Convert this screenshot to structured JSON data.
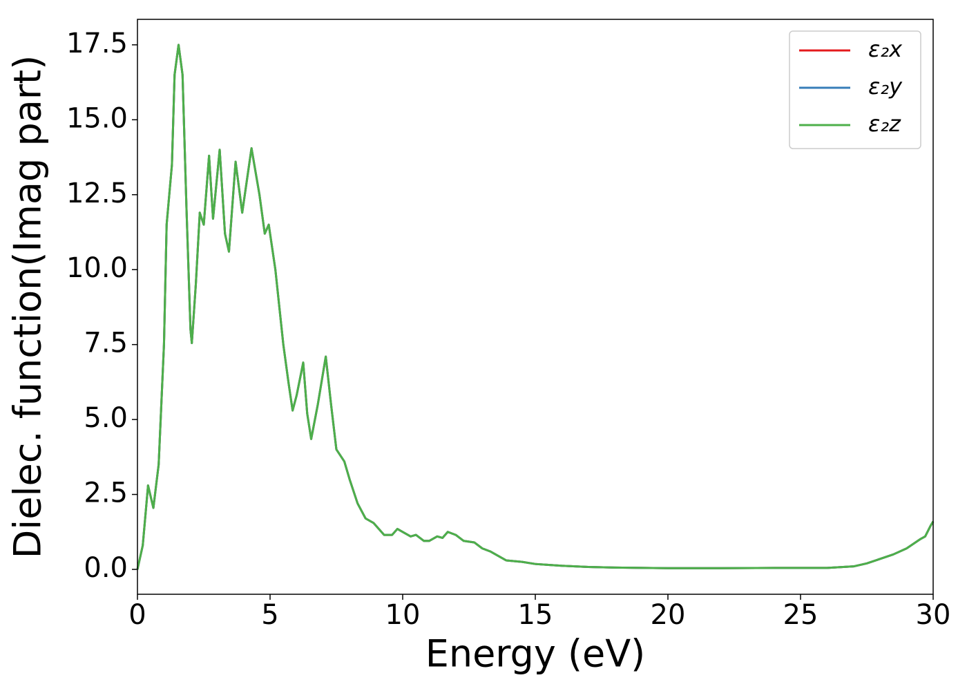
{
  "chart_data": {
    "type": "line",
    "xlabel": "Energy (eV)",
    "ylabel": "Dielec. function(Imag part)",
    "x": [
      0,
      0.2,
      0.4,
      0.6,
      0.8,
      1.0,
      1.1,
      1.2,
      1.3,
      1.4,
      1.55,
      1.7,
      1.85,
      2.0,
      2.05,
      2.2,
      2.35,
      2.5,
      2.7,
      2.85,
      3.1,
      3.3,
      3.45,
      3.7,
      3.95,
      4.3,
      4.6,
      4.8,
      4.95,
      5.2,
      5.5,
      5.7,
      5.85,
      6.0,
      6.25,
      6.4,
      6.55,
      6.8,
      7.1,
      7.3,
      7.5,
      7.8,
      8.0,
      8.3,
      8.6,
      8.9,
      9.3,
      9.6,
      9.8,
      10.0,
      10.3,
      10.5,
      10.8,
      11.0,
      11.3,
      11.5,
      11.7,
      12.0,
      12.3,
      12.7,
      13.0,
      13.3,
      13.6,
      13.9,
      14.5,
      15.0,
      15.5,
      16.0,
      17.0,
      18.0,
      20.0,
      22.0,
      24.0,
      26.0,
      27.0,
      27.5,
      28.0,
      28.5,
      29.0,
      29.5,
      29.7,
      29.9,
      30.0
    ],
    "series": [
      {
        "name": "ε₂x",
        "color": "#e41a1c",
        "values": [
          0.0,
          0.8,
          2.8,
          2.05,
          3.5,
          7.5,
          11.5,
          12.5,
          13.5,
          16.5,
          17.5,
          16.5,
          12.0,
          8.0,
          7.55,
          9.5,
          11.9,
          11.5,
          13.8,
          11.7,
          14.0,
          11.2,
          10.6,
          13.6,
          11.9,
          14.05,
          12.5,
          11.2,
          11.5,
          10.0,
          7.5,
          6.2,
          5.3,
          5.8,
          6.9,
          5.2,
          4.35,
          5.5,
          7.1,
          5.5,
          4.0,
          3.6,
          3.0,
          2.2,
          1.7,
          1.55,
          1.15,
          1.15,
          1.35,
          1.25,
          1.1,
          1.15,
          0.95,
          0.95,
          1.1,
          1.05,
          1.25,
          1.15,
          0.95,
          0.9,
          0.7,
          0.6,
          0.45,
          0.3,
          0.25,
          0.18,
          0.15,
          0.12,
          0.08,
          0.06,
          0.04,
          0.04,
          0.05,
          0.05,
          0.1,
          0.2,
          0.35,
          0.5,
          0.7,
          1.0,
          1.1,
          1.45,
          1.6
        ]
      },
      {
        "name": "ε₂y",
        "color": "#377eb8",
        "values": [
          0.0,
          0.8,
          2.8,
          2.05,
          3.5,
          7.5,
          11.5,
          12.5,
          13.5,
          16.5,
          17.5,
          16.5,
          12.0,
          8.0,
          7.55,
          9.5,
          11.9,
          11.5,
          13.8,
          11.7,
          14.0,
          11.2,
          10.6,
          13.6,
          11.9,
          14.05,
          12.5,
          11.2,
          11.5,
          10.0,
          7.5,
          6.2,
          5.3,
          5.8,
          6.9,
          5.2,
          4.35,
          5.5,
          7.1,
          5.5,
          4.0,
          3.6,
          3.0,
          2.2,
          1.7,
          1.55,
          1.15,
          1.15,
          1.35,
          1.25,
          1.1,
          1.15,
          0.95,
          0.95,
          1.1,
          1.05,
          1.25,
          1.15,
          0.95,
          0.9,
          0.7,
          0.6,
          0.45,
          0.3,
          0.25,
          0.18,
          0.15,
          0.12,
          0.08,
          0.06,
          0.04,
          0.04,
          0.05,
          0.05,
          0.1,
          0.2,
          0.35,
          0.5,
          0.7,
          1.0,
          1.1,
          1.45,
          1.6
        ]
      },
      {
        "name": "ε₂z",
        "color": "#4daf4a",
        "values": [
          0.0,
          0.8,
          2.8,
          2.05,
          3.5,
          7.5,
          11.5,
          12.5,
          13.5,
          16.5,
          17.5,
          16.5,
          12.0,
          8.0,
          7.55,
          9.5,
          11.9,
          11.5,
          13.8,
          11.7,
          14.0,
          11.2,
          10.6,
          13.6,
          11.9,
          14.05,
          12.5,
          11.2,
          11.5,
          10.0,
          7.5,
          6.2,
          5.3,
          5.8,
          6.9,
          5.2,
          4.35,
          5.5,
          7.1,
          5.5,
          4.0,
          3.6,
          3.0,
          2.2,
          1.7,
          1.55,
          1.15,
          1.15,
          1.35,
          1.25,
          1.1,
          1.15,
          0.95,
          0.95,
          1.1,
          1.05,
          1.25,
          1.15,
          0.95,
          0.9,
          0.7,
          0.6,
          0.45,
          0.3,
          0.25,
          0.18,
          0.15,
          0.12,
          0.08,
          0.06,
          0.04,
          0.04,
          0.05,
          0.05,
          0.1,
          0.2,
          0.35,
          0.5,
          0.7,
          1.0,
          1.1,
          1.45,
          1.6
        ]
      }
    ],
    "xlim": [
      0,
      30
    ],
    "xticks": [
      0,
      5,
      10,
      15,
      20,
      25,
      30
    ],
    "ylim": [
      -0.83,
      18.35
    ],
    "yticks": [
      {
        "value": 0,
        "label": "0.0"
      },
      2.5,
      {
        "value": 5,
        "label": "5.0"
      },
      7.5,
      {
        "value": 10,
        "label": "10.0"
      },
      12.5,
      {
        "value": 15,
        "label": "15.0"
      },
      17.5
    ],
    "grid": false,
    "legend": "upper right"
  }
}
